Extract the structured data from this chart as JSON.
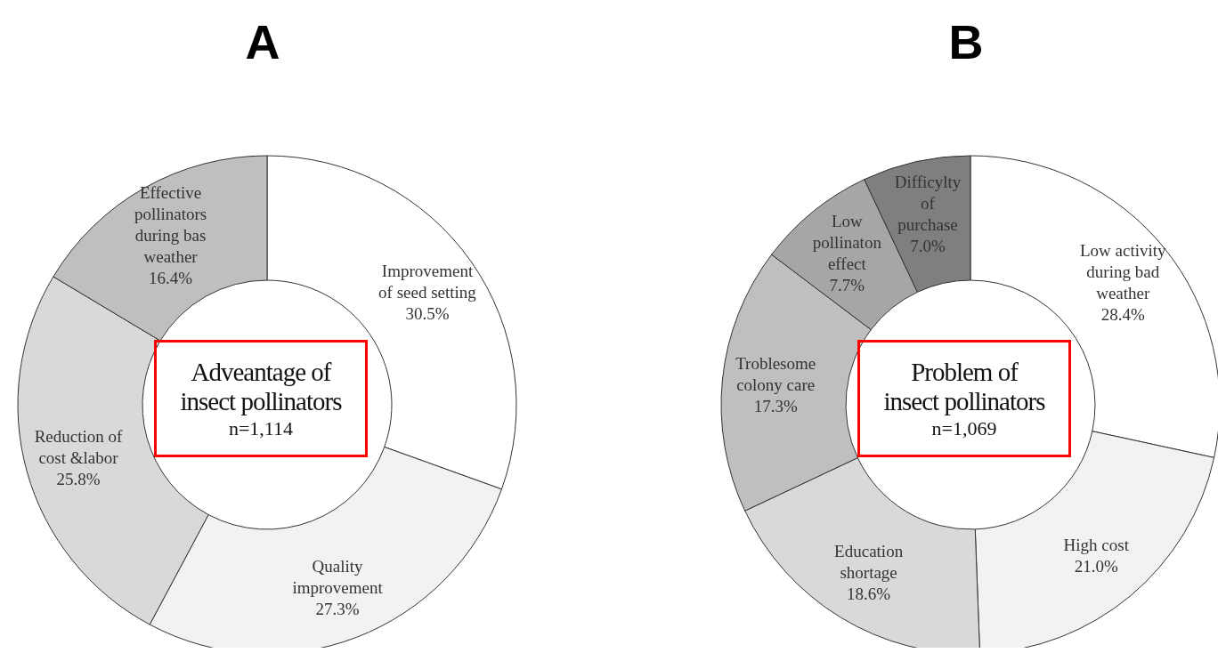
{
  "chart_data": [
    {
      "type": "donut",
      "title": "A",
      "categories": [
        "Improvement\nof seed setting",
        "Quality\nimprovement",
        "Reduction of\ncost &labor",
        "Effective\npollinators\nduring bas\nweather"
      ],
      "values": [
        30.5,
        27.3,
        25.8,
        16.4
      ],
      "value_labels": [
        "30.5%",
        "27.3%",
        "25.8%",
        "16.4%"
      ],
      "colors": [
        "#ffffff",
        "#f2f2f2",
        "#d9d9d9",
        "#bfbfbf"
      ],
      "annotations": [
        "Adveantage of\ninsect pollinators",
        "n=1,114"
      ],
      "legend": false
    },
    {
      "type": "donut",
      "title": "B",
      "categories": [
        "Low activity\nduring bad\nweather",
        "High cost",
        "Education\nshortage",
        "Troblesome\ncolony care",
        "Low\npollinaton\neffect",
        "Difficylty\nof\npurchase"
      ],
      "values": [
        28.4,
        21.0,
        18.6,
        17.3,
        7.7,
        7.0
      ],
      "value_labels": [
        "28.4%",
        "21.0%",
        "18.6%",
        "17.3%",
        "7.7%",
        "7.0%"
      ],
      "colors": [
        "#ffffff",
        "#f2f2f2",
        "#d9d9d9",
        "#bfbfbf",
        "#a6a6a6",
        "#7f7f7f"
      ],
      "annotations": [
        "Problem of\ninsect pollinators",
        "n=1,069"
      ],
      "legend": false
    }
  ]
}
